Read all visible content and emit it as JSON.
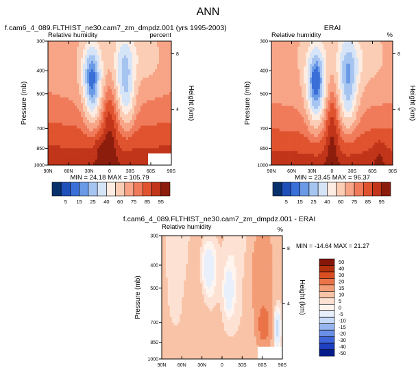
{
  "figure_title": "ANN",
  "colors": {
    "model_palette": [
      "#08306b",
      "#1f4fb8",
      "#3a6fd8",
      "#6a9ae6",
      "#a6c4f0",
      "#d6e4f8",
      "#fdece2",
      "#fbcdb4",
      "#f7a487",
      "#f07b5a",
      "#e0532f",
      "#c1351a",
      "#8c1d0d"
    ],
    "diff_palette": [
      "#061c8c",
      "#1f3fc1",
      "#3d64d8",
      "#6a8fe6",
      "#96b5f0",
      "#c6d9f8",
      "#e8f0fc",
      "#fff4ee",
      "#fde2d4",
      "#f8c3a6",
      "#f39d77",
      "#ea7448",
      "#d94e22",
      "#b4300d",
      "#86150a"
    ],
    "missing": "#ffffff"
  },
  "chart_data": [
    {
      "type": "heatmap",
      "title": "f.cam6_4_089.FLTHIST_ne30.cam7_zm_dmpdz.001 (yrs 1995-2003)",
      "left_label": "Relative humidity",
      "right_label": "percent",
      "xlabel": "",
      "ylabel": "Pressure (mb)",
      "y2label": "Height (km)",
      "x_ticks": [
        "90N",
        "60N",
        "30N",
        "0",
        "30S",
        "60S",
        "90S"
      ],
      "y_ticks": [
        300,
        400,
        500,
        700,
        850,
        1000
      ],
      "y2_ticks": [
        8,
        4
      ],
      "min": 24.18,
      "max": 105.79,
      "stats_text": "MIN = 24.18   MAX = 105.79",
      "levels": [
        5,
        10,
        15,
        20,
        25,
        30,
        40,
        50,
        60,
        70,
        75,
        80,
        85,
        90,
        95
      ],
      "colorbar_labels": [
        "5",
        "15",
        "25",
        "40",
        "60",
        "75",
        "85",
        "95"
      ]
    },
    {
      "type": "heatmap",
      "title": "ERAI",
      "left_label": "Relative humidity",
      "right_label": "%",
      "xlabel": "",
      "ylabel": "Pressure (mb)",
      "y2label": "Height (km)",
      "x_ticks": [
        "90N",
        "60N",
        "30N",
        "0",
        "30S",
        "60S",
        "90S"
      ],
      "y_ticks": [
        300,
        400,
        500,
        700,
        850,
        1000
      ],
      "y2_ticks": [
        8,
        4
      ],
      "min": 23.45,
      "max": 96.37,
      "stats_text": "MIN = 23.45   MAX = 96.37",
      "levels": [
        5,
        10,
        15,
        20,
        25,
        30,
        40,
        50,
        60,
        70,
        75,
        80,
        85,
        90,
        95
      ],
      "colorbar_labels": [
        "5",
        "15",
        "25",
        "40",
        "60",
        "75",
        "85",
        "95"
      ]
    },
    {
      "type": "heatmap",
      "title": "f.cam6_4_089.FLTHIST_ne30.cam7_zm_dmpdz.001 - ERAI",
      "left_label": "Relative humidity",
      "right_label": "%",
      "xlabel": "",
      "ylabel": "Pressure (mb)",
      "y2label": "Height (km)",
      "x_ticks": [
        "90N",
        "60N",
        "30N",
        "0",
        "30S",
        "60S",
        "90S"
      ],
      "y_ticks": [
        300,
        400,
        500,
        700,
        850,
        1000
      ],
      "y2_ticks": [
        8,
        4
      ],
      "min": -14.64,
      "max": 21.27,
      "stats_text": "MIN = -14.64   MAX = 21.27",
      "colorbar_labels": [
        "50",
        "40",
        "30",
        "20",
        "15",
        "10",
        "5",
        "0",
        "-5",
        "-10",
        "-15",
        "-20",
        "-30",
        "-40",
        "-50"
      ]
    }
  ]
}
